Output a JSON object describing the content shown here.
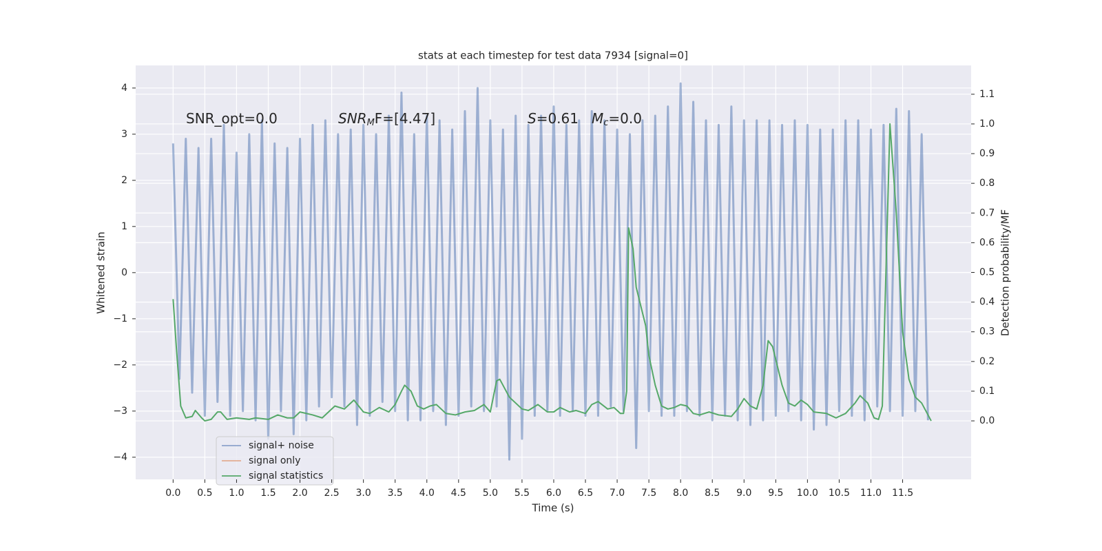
{
  "chart_data": {
    "type": "line",
    "title": "stats at each timestep for test data 7934 [signal=0]",
    "xlabel": "Time (s)",
    "ylabel": "Whitened strain",
    "y2label": "Detection probability/MF",
    "annotations": [
      {
        "base": "SNR_opt=0.0"
      },
      {
        "base": "SNR",
        "sub": "M",
        "rest": "F=[4.47]"
      },
      {
        "base": "S",
        "rest": "=0.61"
      },
      {
        "base": "M",
        "sub": "c",
        "rest": "=0.0"
      }
    ],
    "xlim": [
      -0.59,
      12.58
    ],
    "ylim": [
      -4.48,
      4.49
    ],
    "y2lim": [
      -0.197,
      1.197
    ],
    "xticks": [
      {
        "value": 0,
        "label": "0.0"
      },
      {
        "value": 0.5,
        "label": "0.5"
      },
      {
        "value": 1,
        "label": "1.0"
      },
      {
        "value": 1.5,
        "label": "1.5"
      },
      {
        "value": 2,
        "label": "2.0"
      },
      {
        "value": 2.5,
        "label": "2.5"
      },
      {
        "value": 3,
        "label": "3.0"
      },
      {
        "value": 3.5,
        "label": "3.5"
      },
      {
        "value": 4,
        "label": "4.0"
      },
      {
        "value": 4.5,
        "label": "4.5"
      },
      {
        "value": 5,
        "label": "5.0"
      },
      {
        "value": 5.5,
        "label": "5.5"
      },
      {
        "value": 6,
        "label": "6.0"
      },
      {
        "value": 6.5,
        "label": "6.5"
      },
      {
        "value": 7,
        "label": "7.0"
      },
      {
        "value": 7.5,
        "label": "7.5"
      },
      {
        "value": 8,
        "label": "8.0"
      },
      {
        "value": 8.5,
        "label": "8.5"
      },
      {
        "value": 9,
        "label": "9.0"
      },
      {
        "value": 9.5,
        "label": "9.5"
      },
      {
        "value": 10,
        "label": "10.0"
      },
      {
        "value": 10.5,
        "label": "10.5"
      },
      {
        "value": 11,
        "label": "11.0"
      },
      {
        "value": 11.5,
        "label": "11.5"
      }
    ],
    "yticks": [
      {
        "value": -4,
        "label": "−4"
      },
      {
        "value": -3,
        "label": "−3"
      },
      {
        "value": -2,
        "label": "−2"
      },
      {
        "value": -1,
        "label": "−1"
      },
      0,
      1,
      2,
      3,
      4
    ],
    "y2ticks": [
      {
        "value": 0,
        "label": "0.0"
      },
      {
        "value": 0.1,
        "label": "0.1"
      },
      {
        "value": 0.2,
        "label": "0.2"
      },
      {
        "value": 0.3,
        "label": "0.3"
      },
      {
        "value": 0.4,
        "label": "0.4"
      },
      {
        "value": 0.5,
        "label": "0.5"
      },
      {
        "value": 0.6,
        "label": "0.6"
      },
      {
        "value": 0.7,
        "label": "0.7"
      },
      {
        "value": 0.8,
        "label": "0.8"
      },
      {
        "value": 0.9,
        "label": "0.9"
      },
      {
        "value": 1,
        "label": "1.0"
      },
      {
        "value": 1.1,
        "label": "1.1"
      }
    ],
    "grid": true,
    "legend": "lower left",
    "series": [
      {
        "name": "signal+ noise",
        "color": "#4c72b0",
        "x": [
          0,
          0.1,
          0.2,
          0.3,
          0.4,
          0.5,
          0.6,
          0.7,
          0.8,
          0.9,
          1,
          1.1,
          1.2,
          1.3,
          1.4,
          1.5,
          1.6,
          1.7,
          1.8,
          1.9,
          2,
          2.1,
          2.2,
          2.3,
          2.4,
          2.5,
          2.6,
          2.7,
          2.8,
          2.9,
          3,
          3.1,
          3.2,
          3.3,
          3.4,
          3.5,
          3.6,
          3.7,
          3.8,
          3.9,
          4,
          4.1,
          4.2,
          4.3,
          4.4,
          4.5,
          4.6,
          4.7,
          4.8,
          4.9,
          5,
          5.1,
          5.2,
          5.3,
          5.4,
          5.5,
          5.6,
          5.7,
          5.8,
          5.9,
          6,
          6.1,
          6.2,
          6.3,
          6.4,
          6.5,
          6.6,
          6.7,
          6.8,
          6.9,
          7,
          7.1,
          7.2,
          7.3,
          7.4,
          7.5,
          7.6,
          7.7,
          7.8,
          7.9,
          8,
          8.1,
          8.2,
          8.3,
          8.4,
          8.5,
          8.6,
          8.7,
          8.8,
          8.9,
          9,
          9.1,
          9.2,
          9.3,
          9.4,
          9.5,
          9.6,
          9.7,
          9.8,
          9.9,
          10,
          10.1,
          10.2,
          10.3,
          10.4,
          10.5,
          10.6,
          10.7,
          10.8,
          10.9,
          11,
          11.1,
          11.2,
          11.3,
          11.4,
          11.5,
          11.6,
          11.7,
          11.8,
          11.9
        ],
        "values": [
          2.8,
          -2.3,
          2.9,
          -2.6,
          2.7,
          -3.1,
          2.9,
          -2.8,
          3.2,
          -3.1,
          2.6,
          -3.0,
          3.0,
          -3.2,
          3.3,
          -3.6,
          2.8,
          -3.0,
          2.7,
          -3.5,
          2.9,
          -3.2,
          3.2,
          -2.9,
          3.3,
          -2.7,
          3.0,
          -2.9,
          3.1,
          -3.3,
          3.2,
          -3.1,
          3.0,
          -2.8,
          3.4,
          -3.0,
          3.9,
          -3.2,
          3.0,
          -3.2,
          3.4,
          -3.0,
          3.3,
          -3.3,
          3.1,
          -3.1,
          3.5,
          -2.9,
          4.0,
          -3.0,
          3.3,
          -2.9,
          3.1,
          -4.05,
          3.4,
          -3.6,
          3.2,
          -3.1,
          3.4,
          -3.0,
          3.6,
          -3.1,
          3.2,
          -3.0,
          3.3,
          -3.1,
          3.5,
          -3.1,
          3.3,
          -2.9,
          3.1,
          -3.0,
          3.0,
          -3.8,
          3.3,
          -3.0,
          3.4,
          -3.1,
          3.6,
          -3.1,
          4.1,
          -3.0,
          3.7,
          -3.1,
          3.3,
          -3.2,
          3.2,
          -3.1,
          3.6,
          -3.2,
          3.3,
          -3.3,
          3.3,
          -3.2,
          3.3,
          -3.1,
          3.2,
          -3.0,
          3.3,
          -3.2,
          3.2,
          -3.4,
          3.1,
          -3.3,
          3.1,
          -3.0,
          3.3,
          -3.1,
          3.3,
          -3.2,
          3.1,
          -2.9,
          3.2,
          -3.0,
          3.55,
          -3.1,
          3.5,
          -3.0,
          3.0,
          -3.2
        ]
      },
      {
        "name": "signal only",
        "color": "#dd8452",
        "x": [],
        "values": []
      },
      {
        "name": "signal statistics",
        "color": "#55a868",
        "axis": "y2",
        "x": [
          0,
          0.05,
          0.12,
          0.2,
          0.3,
          0.35,
          0.45,
          0.5,
          0.6,
          0.7,
          0.75,
          0.85,
          1,
          1.2,
          1.3,
          1.5,
          1.65,
          1.8,
          1.9,
          2,
          2.2,
          2.35,
          2.45,
          2.55,
          2.7,
          2.85,
          3,
          3.1,
          3.25,
          3.4,
          3.5,
          3.6,
          3.65,
          3.75,
          3.85,
          3.95,
          4.05,
          4.15,
          4.3,
          4.45,
          4.6,
          4.75,
          4.9,
          5,
          5.1,
          5.15,
          5.3,
          5.5,
          5.6,
          5.75,
          5.9,
          6,
          6.1,
          6.25,
          6.35,
          6.5,
          6.6,
          6.7,
          6.85,
          6.95,
          7.05,
          7.1,
          7.15,
          7.18,
          7.25,
          7.3,
          7.45,
          7.5,
          7.6,
          7.7,
          7.8,
          7.9,
          8,
          8.1,
          8.2,
          8.3,
          8.45,
          8.6,
          8.8,
          8.9,
          9,
          9.1,
          9.2,
          9.3,
          9.38,
          9.45,
          9.6,
          9.7,
          9.8,
          9.9,
          10,
          10.1,
          10.3,
          10.45,
          10.6,
          10.75,
          10.83,
          10.95,
          11.05,
          11.12,
          11.18,
          11.3,
          11.4,
          11.5,
          11.6,
          11.7,
          11.8,
          11.9,
          11.95
        ],
        "values": [
          0.41,
          0.25,
          0.05,
          0.01,
          0.015,
          0.035,
          0.01,
          0.0,
          0.005,
          0.03,
          0.03,
          0.005,
          0.01,
          0.005,
          0.01,
          0.005,
          0.02,
          0.01,
          0.01,
          0.03,
          0.02,
          0.01,
          0.03,
          0.05,
          0.04,
          0.07,
          0.03,
          0.025,
          0.045,
          0.03,
          0.055,
          0.1,
          0.12,
          0.1,
          0.05,
          0.04,
          0.05,
          0.055,
          0.025,
          0.02,
          0.03,
          0.035,
          0.055,
          0.03,
          0.135,
          0.14,
          0.08,
          0.04,
          0.035,
          0.055,
          0.03,
          0.03,
          0.045,
          0.03,
          0.035,
          0.025,
          0.055,
          0.065,
          0.04,
          0.045,
          0.025,
          0.025,
          0.1,
          0.65,
          0.58,
          0.45,
          0.32,
          0.22,
          0.12,
          0.05,
          0.04,
          0.045,
          0.055,
          0.05,
          0.025,
          0.02,
          0.03,
          0.02,
          0.015,
          0.04,
          0.075,
          0.05,
          0.04,
          0.12,
          0.27,
          0.25,
          0.12,
          0.06,
          0.05,
          0.07,
          0.055,
          0.03,
          0.025,
          0.01,
          0.025,
          0.06,
          0.085,
          0.06,
          0.01,
          0.005,
          0.05,
          1.0,
          0.7,
          0.3,
          0.14,
          0.08,
          0.06,
          0.02,
          0.0
        ]
      }
    ]
  }
}
